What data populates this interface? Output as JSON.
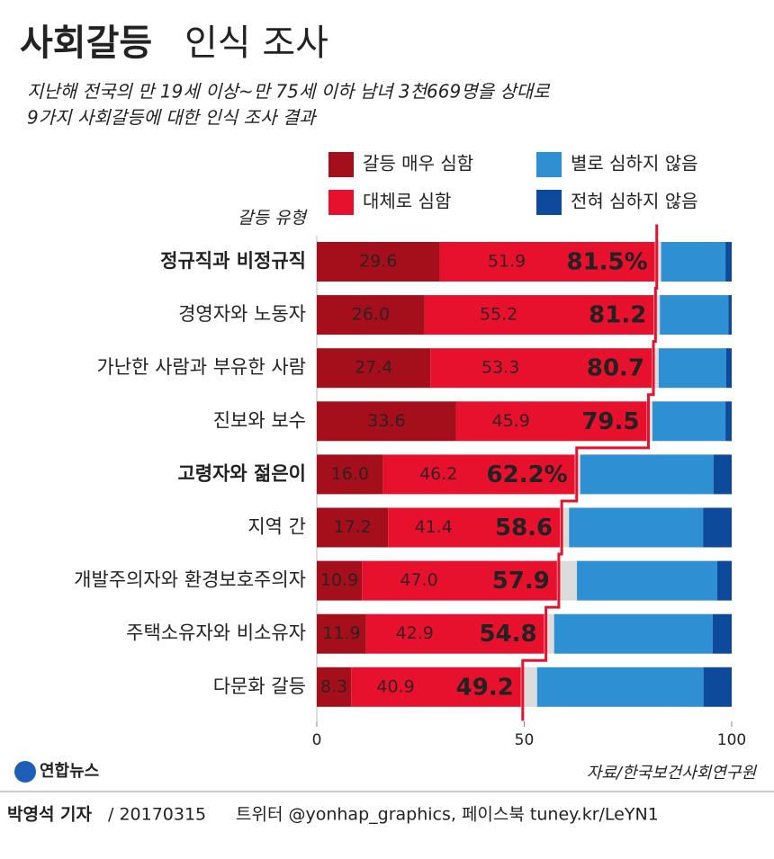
{
  "chart_data": {
    "type": "stacked-barh",
    "title": {
      "bold": "사회갈등",
      "light": "인식 조사"
    },
    "subtitle": [
      "지난해 전국의 만 19세 이상~만 75세 이하 남녀 3천669명을 상대로",
      "9가지 사회갈등에 대한 인식 조사 결과"
    ],
    "y_label": "갈등 유형",
    "categories": [
      "정규직과 비정규직",
      "경영자와 노동자",
      "가난한 사람과 부유한 사람",
      "진보와 보수",
      "고령자와 젊은이",
      "지역 간",
      "개발주의자와 환경보호주의자",
      "주택소유자와 비소유자",
      "다문화 갈등"
    ],
    "bold_categories": [
      0,
      4
    ],
    "series": [
      {
        "name": "갈등 매우 심함",
        "color": "#a50f1c",
        "values": [
          29.6,
          26.0,
          27.4,
          33.6,
          16.0,
          17.2,
          10.9,
          11.9,
          8.3
        ],
        "value_labels": [
          "29.6",
          "26.0",
          "27.4",
          "33.6",
          "16.0",
          "17.2",
          "10.9",
          "11.9",
          "8.3"
        ]
      },
      {
        "name": "대체로 심함",
        "color": "#e8112d",
        "values": [
          51.9,
          55.2,
          53.3,
          45.9,
          46.2,
          41.4,
          47.0,
          42.9,
          40.9
        ],
        "value_labels": [
          "51.9",
          "55.2",
          "53.3",
          "45.9",
          "46.2",
          "41.4",
          "47.0",
          "42.9",
          "40.9"
        ]
      },
      {
        "color": "#dcdcdc",
        "values": [
          1.5,
          1.5,
          1.7,
          1.4,
          1.3,
          2.2,
          4.8,
          2.4,
          3.9
        ]
      },
      {
        "name": "별로 심하지 않음",
        "color": "#2f8fd3",
        "values": [
          15.5,
          16.5,
          16.3,
          17.6,
          32.1,
          32.3,
          33.8,
          38.2,
          40.1
        ]
      },
      {
        "name": "전혀 심하지 않음",
        "color": "#0d4a9b",
        "values": [
          1.5,
          0.8,
          1.3,
          1.5,
          4.4,
          6.9,
          3.5,
          4.6,
          6.8
        ]
      }
    ],
    "totals": {
      "values": [
        81.5,
        81.2,
        80.7,
        79.5,
        62.2,
        58.6,
        57.9,
        54.8,
        49.2
      ],
      "value_labels": [
        "81.5%",
        "81.2",
        "80.7",
        "79.5",
        "62.2%",
        "58.6",
        "57.9",
        "54.8",
        "49.2"
      ],
      "color": "#e8112d"
    },
    "xlim": [
      0,
      100
    ],
    "xticks": [
      0,
      50,
      100
    ],
    "source": "자료/한국보건사회연구원",
    "logo": "연합뉴스",
    "footer": {
      "author": "박영석 기자",
      "date": "/ 20170315",
      "sns": "트위터 @yonhap_graphics, 페이스북 tuney.kr/LeYN1"
    }
  }
}
